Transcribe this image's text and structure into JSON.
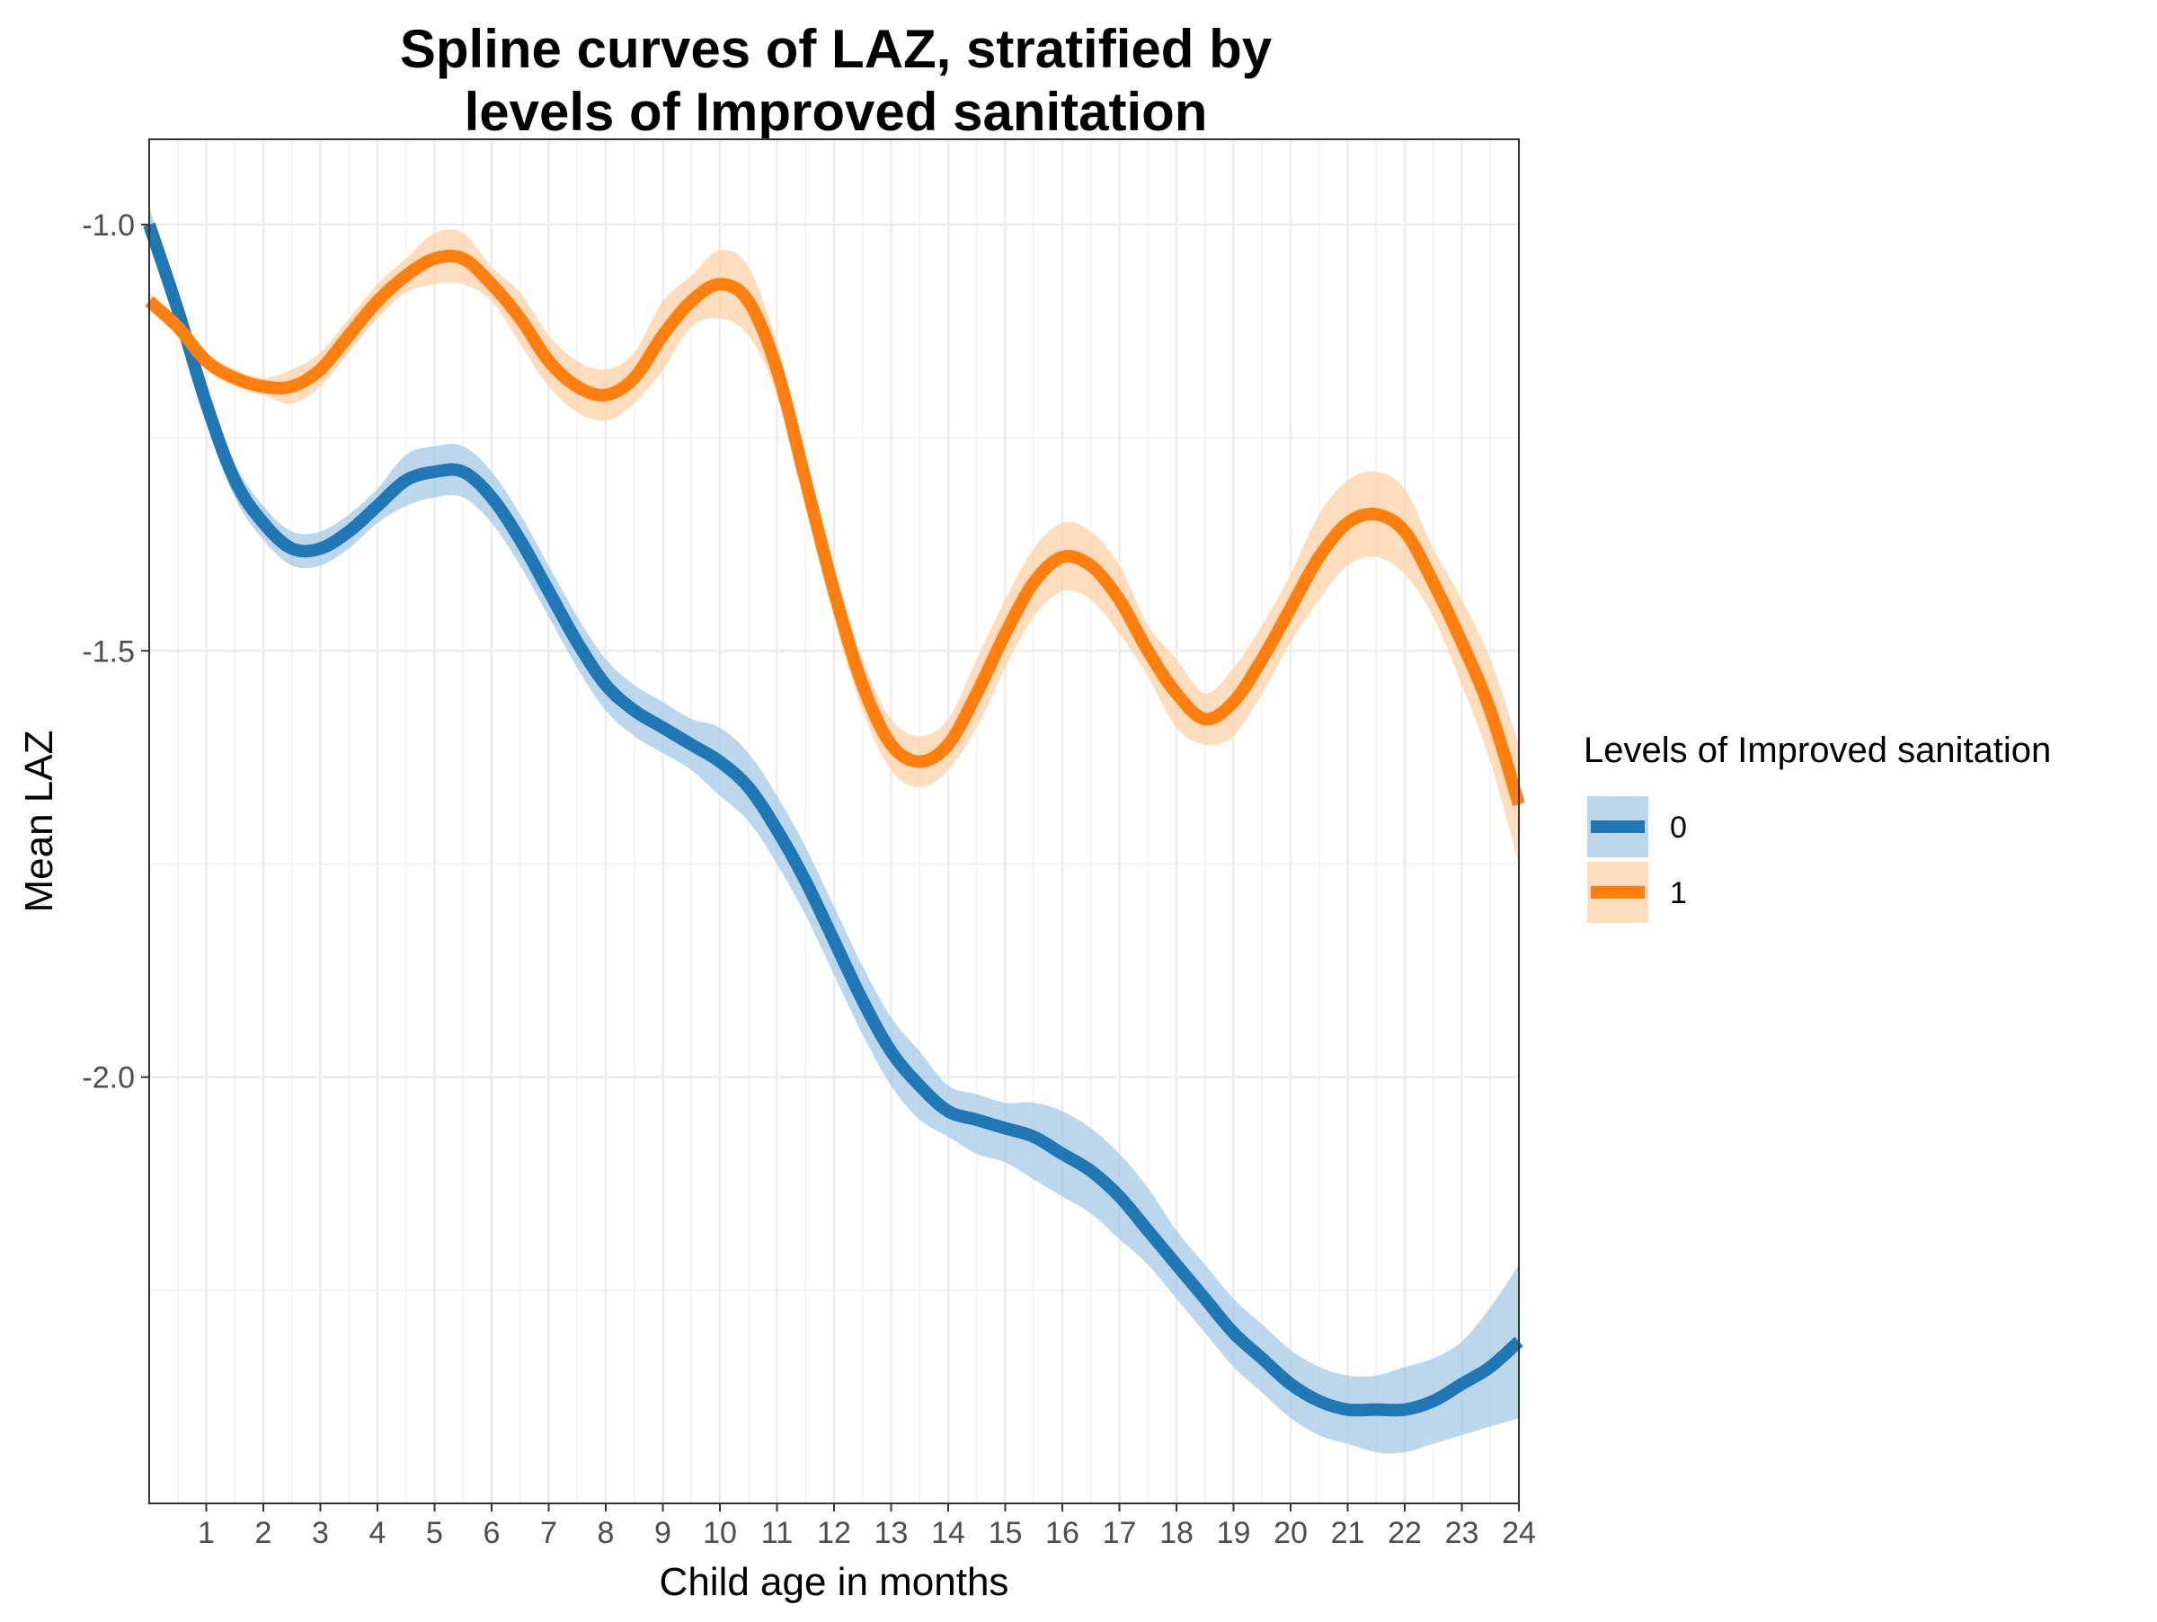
{
  "chart_data": {
    "type": "line",
    "title_lines": [
      "Spline curves of LAZ, stratified by",
      "levels of Improved sanitation"
    ],
    "xlabel": "Child age in months",
    "ylabel": "Mean LAZ",
    "xlim": [
      0,
      24
    ],
    "ylim": [
      -2.5,
      -0.9
    ],
    "x_ticks": [
      1,
      2,
      3,
      4,
      5,
      6,
      7,
      8,
      9,
      10,
      11,
      12,
      13,
      14,
      15,
      16,
      17,
      18,
      19,
      20,
      21,
      22,
      23,
      24
    ],
    "x_tick_labels": [
      "1",
      "2",
      "3",
      "4",
      "5",
      "6",
      "7",
      "8",
      "9",
      "10",
      "11",
      "12",
      "13",
      "14",
      "15",
      "16",
      "17",
      "18",
      "19",
      "20",
      "21",
      "22",
      "23",
      "24"
    ],
    "y_ticks": [
      -1.0,
      -1.5,
      -2.0
    ],
    "y_tick_labels": [
      "-1.0",
      "-1.5",
      "-2.0"
    ],
    "y_minor_ticks": [
      -1.25,
      -1.75,
      -2.25
    ],
    "grid": true,
    "legend": {
      "title": "Levels of Improved sanitation",
      "position": "right"
    },
    "series": [
      {
        "name": "0",
        "color": "#1f77b4",
        "band_color": "#a6c8e6",
        "x": [
          0.0,
          0.5,
          1.0,
          1.5,
          2.0,
          2.5,
          3.0,
          3.5,
          4.0,
          4.5,
          5.0,
          5.5,
          6.0,
          6.5,
          7.0,
          7.5,
          8.0,
          8.5,
          9.0,
          9.5,
          10.0,
          10.5,
          11.0,
          11.5,
          12.0,
          12.5,
          13.0,
          13.5,
          14.0,
          14.5,
          15.0,
          15.5,
          16.0,
          16.5,
          17.0,
          17.5,
          18.0,
          18.5,
          19.0,
          19.5,
          20.0,
          20.5,
          21.0,
          21.5,
          22.0,
          22.5,
          23.0,
          23.5,
          24.0
        ],
        "y": [
          -1.0,
          -1.1,
          -1.21,
          -1.3,
          -1.35,
          -1.38,
          -1.38,
          -1.36,
          -1.33,
          -1.3,
          -1.29,
          -1.29,
          -1.32,
          -1.37,
          -1.43,
          -1.49,
          -1.54,
          -1.57,
          -1.59,
          -1.61,
          -1.63,
          -1.66,
          -1.71,
          -1.77,
          -1.84,
          -1.91,
          -1.97,
          -2.01,
          -2.04,
          -2.05,
          -2.06,
          -2.07,
          -2.09,
          -2.11,
          -2.14,
          -2.18,
          -2.22,
          -2.26,
          -2.3,
          -2.33,
          -2.36,
          -2.38,
          -2.39,
          -2.39,
          -2.39,
          -2.38,
          -2.36,
          -2.34,
          -2.31
        ],
        "lower": [
          -1.02,
          -1.12,
          -1.23,
          -1.32,
          -1.37,
          -1.4,
          -1.4,
          -1.38,
          -1.35,
          -1.33,
          -1.32,
          -1.32,
          -1.35,
          -1.4,
          -1.46,
          -1.52,
          -1.57,
          -1.6,
          -1.62,
          -1.64,
          -1.67,
          -1.7,
          -1.75,
          -1.81,
          -1.88,
          -1.95,
          -2.01,
          -2.05,
          -2.07,
          -2.09,
          -2.1,
          -2.12,
          -2.14,
          -2.16,
          -2.19,
          -2.22,
          -2.26,
          -2.3,
          -2.34,
          -2.37,
          -2.4,
          -2.42,
          -2.43,
          -2.44,
          -2.44,
          -2.43,
          -2.42,
          -2.41,
          -2.4
        ],
        "upper": [
          -0.98,
          -1.08,
          -1.19,
          -1.28,
          -1.33,
          -1.36,
          -1.36,
          -1.34,
          -1.31,
          -1.27,
          -1.26,
          -1.26,
          -1.29,
          -1.34,
          -1.4,
          -1.46,
          -1.51,
          -1.54,
          -1.56,
          -1.58,
          -1.59,
          -1.62,
          -1.67,
          -1.73,
          -1.8,
          -1.87,
          -1.93,
          -1.97,
          -2.01,
          -2.02,
          -2.03,
          -2.03,
          -2.04,
          -2.06,
          -2.09,
          -2.13,
          -2.18,
          -2.22,
          -2.26,
          -2.29,
          -2.32,
          -2.34,
          -2.35,
          -2.35,
          -2.34,
          -2.33,
          -2.31,
          -2.27,
          -2.22
        ]
      },
      {
        "name": "1",
        "color": "#ff7f0e",
        "band_color": "#fdd0a8",
        "x": [
          0.0,
          0.5,
          1.0,
          1.5,
          2.0,
          2.5,
          3.0,
          3.5,
          4.0,
          4.5,
          5.0,
          5.5,
          6.0,
          6.5,
          7.0,
          7.5,
          8.0,
          8.5,
          9.0,
          9.5,
          10.0,
          10.5,
          11.0,
          11.5,
          12.0,
          12.5,
          13.0,
          13.5,
          14.0,
          14.5,
          15.0,
          15.5,
          16.0,
          16.5,
          17.0,
          17.5,
          18.0,
          18.5,
          19.0,
          19.5,
          20.0,
          20.5,
          21.0,
          21.5,
          22.0,
          22.5,
          23.0,
          23.5,
          24.0
        ],
        "y": [
          -1.09,
          -1.12,
          -1.16,
          -1.18,
          -1.19,
          -1.19,
          -1.17,
          -1.13,
          -1.09,
          -1.06,
          -1.04,
          -1.04,
          -1.07,
          -1.11,
          -1.16,
          -1.19,
          -1.2,
          -1.18,
          -1.13,
          -1.09,
          -1.07,
          -1.09,
          -1.17,
          -1.3,
          -1.43,
          -1.54,
          -1.61,
          -1.63,
          -1.61,
          -1.55,
          -1.48,
          -1.42,
          -1.39,
          -1.4,
          -1.44,
          -1.5,
          -1.55,
          -1.58,
          -1.56,
          -1.51,
          -1.45,
          -1.39,
          -1.35,
          -1.34,
          -1.36,
          -1.42,
          -1.49,
          -1.57,
          -1.68
        ],
        "lower": [
          -1.1,
          -1.13,
          -1.17,
          -1.19,
          -1.2,
          -1.21,
          -1.19,
          -1.15,
          -1.11,
          -1.08,
          -1.07,
          -1.07,
          -1.09,
          -1.14,
          -1.19,
          -1.22,
          -1.23,
          -1.21,
          -1.17,
          -1.12,
          -1.11,
          -1.13,
          -1.2,
          -1.33,
          -1.46,
          -1.57,
          -1.64,
          -1.66,
          -1.64,
          -1.59,
          -1.52,
          -1.46,
          -1.43,
          -1.44,
          -1.48,
          -1.53,
          -1.59,
          -1.61,
          -1.6,
          -1.55,
          -1.49,
          -1.44,
          -1.4,
          -1.39,
          -1.41,
          -1.46,
          -1.54,
          -1.63,
          -1.75
        ],
        "upper": [
          -1.08,
          -1.11,
          -1.15,
          -1.17,
          -1.18,
          -1.17,
          -1.15,
          -1.11,
          -1.07,
          -1.04,
          -1.01,
          -1.01,
          -1.05,
          -1.08,
          -1.13,
          -1.16,
          -1.17,
          -1.15,
          -1.09,
          -1.06,
          -1.03,
          -1.05,
          -1.14,
          -1.27,
          -1.4,
          -1.51,
          -1.58,
          -1.6,
          -1.58,
          -1.51,
          -1.44,
          -1.38,
          -1.35,
          -1.36,
          -1.4,
          -1.47,
          -1.51,
          -1.55,
          -1.52,
          -1.47,
          -1.41,
          -1.34,
          -1.3,
          -1.29,
          -1.31,
          -1.38,
          -1.44,
          -1.51,
          -1.61
        ]
      }
    ]
  }
}
